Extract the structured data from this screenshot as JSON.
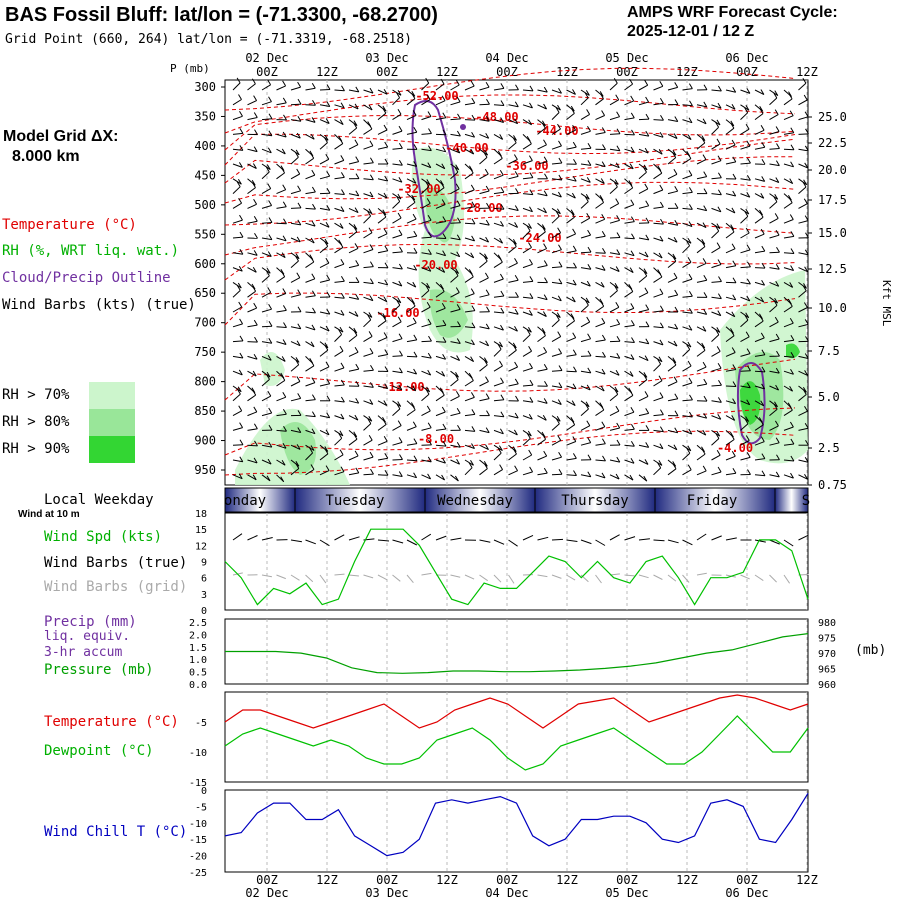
{
  "header": {
    "title": "BAS Fossil Bluff:  lat/lon = (-71.3300, -68.2700)",
    "grid_point": "Grid Point (660, 264) lat/lon = (-71.3319, -68.2518)",
    "cycle_line1": "AMPS WRF Forecast Cycle:",
    "cycle_line2": "2025-12-01 / 12  Z"
  },
  "left_panel": {
    "grid_dx_line1": "Model Grid ΔX:",
    "grid_dx_line2": "8.000 km",
    "legend_temperature": "Temperature (°C)",
    "legend_rh": "RH (%, WRT liq. wat.)",
    "legend_cloud": "Cloud/Precip Outline",
    "legend_wind": "Wind Barbs (kts) (true)",
    "rh70": "RH > 70%",
    "rh80": "RH > 80%",
    "rh90": "RH > 90%",
    "local_weekday": "Local Weekday",
    "wind_at": "Wind at 10 m",
    "wind_spd": "Wind Spd (kts)",
    "wind_barbs_true": "Wind Barbs (true)",
    "wind_barbs_grid": "Wind Barbs (grid)",
    "precip": "Precip (mm)",
    "liq_equiv": "liq. equiv.",
    "accum": "3-hr accum",
    "pressure": "Pressure (mb)",
    "temperature": "Temperature (°C)",
    "dewpoint": "Dewpoint (°C)",
    "wind_chill": "Wind Chill T (°C)",
    "p_unit": "P (mb)",
    "mb_unit": "(mb)",
    "kft": "Kft MSL"
  },
  "colors": {
    "temperature": "#e00000",
    "dewpoint": "#00c000",
    "cloud": "#7030a0",
    "wind_chill": "#0000c0",
    "pressure": "#00a000",
    "rh70": "#ccf5cc",
    "rh80": "#99e699",
    "rh90": "#33d633"
  },
  "time_axis": {
    "top_labels": [
      {
        "h": "00Z",
        "d": "02 Dec"
      },
      {
        "h": "12Z",
        "d": ""
      },
      {
        "h": "00Z",
        "d": "03 Dec"
      },
      {
        "h": "12Z",
        "d": ""
      },
      {
        "h": "00Z",
        "d": "04 Dec"
      },
      {
        "h": "12Z",
        "d": ""
      },
      {
        "h": "00Z",
        "d": "05 Dec"
      },
      {
        "h": "12Z",
        "d": ""
      },
      {
        "h": "00Z",
        "d": "06 Dec"
      },
      {
        "h": "12Z",
        "d": ""
      }
    ],
    "bottom_labels": [
      {
        "h": "00Z",
        "d": "02 Dec"
      },
      {
        "h": "12Z",
        "d": ""
      },
      {
        "h": "00Z",
        "d": "03 Dec"
      },
      {
        "h": "12Z",
        "d": ""
      },
      {
        "h": "00Z",
        "d": "04 Dec"
      },
      {
        "h": "12Z",
        "d": ""
      },
      {
        "h": "00Z",
        "d": "05 Dec"
      },
      {
        "h": "12Z",
        "d": ""
      },
      {
        "h": "00Z",
        "d": "06 Dec"
      },
      {
        "h": "12Z",
        "d": ""
      }
    ],
    "weekdays": [
      "onday",
      "Tuesday",
      "Wednesday",
      "Thursday",
      "Friday",
      "S"
    ]
  },
  "chart_data": [
    {
      "type": "heatmap",
      "name": "cross-section",
      "y_pressure_ticks": [
        300,
        350,
        400,
        450,
        500,
        550,
        600,
        650,
        700,
        750,
        800,
        850,
        900,
        950
      ],
      "y_height_ticks": [
        "25.0",
        "22.5",
        "20.0",
        "17.5",
        "15.0",
        "12.5",
        "10.0",
        "7.5",
        "5.0",
        "2.5",
        "0.75"
      ],
      "temperature_contour_labels": [
        "-52.00",
        "-48.00",
        "-44.00",
        "-40.00",
        "-36.00",
        "-32.00",
        "-28.00",
        "-24.00",
        "-20.00",
        "-16.00",
        "-12.00",
        "-8.00",
        "-4.00"
      ]
    },
    {
      "type": "line",
      "name": "wind-speed",
      "y_ticks": [
        0,
        3,
        6,
        9,
        12,
        15,
        18
      ],
      "ylim": [
        0,
        18
      ],
      "values": [
        9,
        6,
        1,
        4,
        3,
        5,
        1,
        2,
        9,
        15,
        15,
        15,
        12,
        7,
        2,
        1,
        5,
        4,
        4,
        7,
        10,
        9,
        6,
        9,
        6,
        5,
        9,
        10,
        6,
        1,
        6,
        6,
        7,
        13,
        13,
        11,
        2
      ]
    },
    {
      "type": "line",
      "name": "pressure",
      "y_ticks_left": [
        "2.5",
        "2.0",
        "1.5",
        "1.0",
        "0.5",
        "0.0"
      ],
      "y_ticks_right": [
        980,
        975,
        970,
        965,
        960
      ],
      "ylim": [
        960,
        980
      ],
      "values": [
        970,
        970,
        970,
        969.5,
        968,
        965,
        963.5,
        963.3,
        963.5,
        964,
        964,
        963.8,
        963.8,
        964,
        964.3,
        964.8,
        965.5,
        966.5,
        968,
        969.5,
        970.5,
        972.5,
        974.5,
        975.5
      ]
    },
    {
      "type": "line",
      "name": "temperature-dewpoint",
      "y_ticks": [
        -5,
        -10,
        -15
      ],
      "ylim": [
        -15,
        0
      ],
      "series": [
        {
          "name": "Temperature",
          "values": [
            -5,
            -3,
            -3,
            -4,
            -5,
            -6,
            -5,
            -4,
            -3,
            -2,
            -4,
            -6,
            -5,
            -3,
            -2,
            -1,
            -2,
            -4,
            -6,
            -4,
            -2,
            -1.5,
            -1,
            -3,
            -5,
            -4,
            -3,
            -2,
            -1,
            -0.5,
            -1,
            -2,
            -3,
            -2
          ]
        },
        {
          "name": "Dewpoint",
          "values": [
            -9,
            -7,
            -6,
            -7,
            -8,
            -9,
            -8,
            -9,
            -11,
            -12,
            -12,
            -11,
            -8,
            -7,
            -6,
            -8,
            -11,
            -13,
            -12,
            -9,
            -8,
            -7,
            -6,
            -8,
            -10,
            -12,
            -12,
            -10,
            -7,
            -4,
            -7,
            -10,
            -10,
            -6
          ]
        }
      ]
    },
    {
      "type": "line",
      "name": "wind-chill",
      "y_ticks": [
        0,
        -5,
        -10,
        -15,
        -20,
        -25
      ],
      "ylim": [
        -25,
        0
      ],
      "values": [
        -14,
        -13,
        -7,
        -4,
        -4,
        -9,
        -9,
        -6,
        -14,
        -17,
        -20,
        -19,
        -15,
        -4,
        -3,
        -4,
        -3,
        -2,
        -4,
        -14,
        -17,
        -15,
        -9,
        -9,
        -8,
        -8,
        -10,
        -15,
        -16,
        -14,
        -4,
        -3,
        -5,
        -15,
        -16,
        -9,
        -1
      ]
    }
  ]
}
